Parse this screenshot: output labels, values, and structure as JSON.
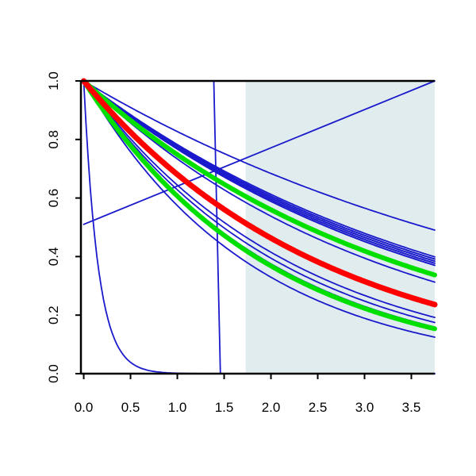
{
  "chart_data": {
    "type": "line",
    "title": "",
    "xlabel": "",
    "ylabel": "",
    "xlim": [
      -0.03,
      3.75
    ],
    "ylim": [
      0,
      1.0
    ],
    "grid": false,
    "x_ticks": [
      "0.0",
      "0.5",
      "1.0",
      "1.5",
      "2.0",
      "2.5",
      "3.0",
      "3.5"
    ],
    "y_ticks": [
      "0.0",
      "0.2",
      "0.4",
      "0.6",
      "0.8",
      "1.0"
    ],
    "shaded_region": {
      "x_start": 1.73,
      "x_end": 3.75,
      "color": "#e0eced"
    },
    "colors": {
      "blue": "#1a1acc",
      "red": "#ff0000",
      "green": "#00e000",
      "shade": "#e0eced"
    },
    "series": [
      {
        "kind": "linear",
        "start": 0.51,
        "slope": 0.131,
        "color": "#1a1acc",
        "width": 1.8
      },
      {
        "kind": "step",
        "step_at": 1.42,
        "color": "#1a1acc",
        "width": 1.8
      },
      {
        "kind": "exp",
        "rate": 6.5,
        "color": "#1a1acc",
        "width": 1.8
      },
      {
        "kind": "exp",
        "rate": 0.19,
        "color": "#1a1acc",
        "width": 1.8
      },
      {
        "kind": "exp",
        "rate": 0.245,
        "color": "#1a1acc",
        "width": 1.8
      },
      {
        "kind": "exp",
        "rate": 0.25,
        "color": "#1a1acc",
        "width": 2.0
      },
      {
        "kind": "exp",
        "rate": 0.255,
        "color": "#1a1acc",
        "width": 2.0
      },
      {
        "kind": "exp",
        "rate": 0.26,
        "color": "#1a1acc",
        "width": 2.0
      },
      {
        "kind": "exp",
        "rate": 0.265,
        "color": "#1a1acc",
        "width": 2.0
      },
      {
        "kind": "exp",
        "rate": 0.31,
        "color": "#1a1acc",
        "width": 1.8
      },
      {
        "kind": "exp",
        "rate": 0.44,
        "color": "#1a1acc",
        "width": 1.8
      },
      {
        "kind": "exp",
        "rate": 0.465,
        "color": "#1a1acc",
        "width": 1.8
      },
      {
        "kind": "exp",
        "rate": 0.49,
        "color": "#1a1acc",
        "width": 1.8
      },
      {
        "kind": "exp",
        "rate": 0.555,
        "color": "#1a1acc",
        "width": 1.8
      },
      {
        "kind": "exp",
        "rate": 0.29,
        "color": "#00e000",
        "width": 6
      },
      {
        "kind": "exp",
        "rate": 0.5,
        "color": "#00e000",
        "width": 6
      },
      {
        "kind": "exp",
        "rate": 0.385,
        "color": "#ff0000",
        "width": 7
      }
    ]
  }
}
